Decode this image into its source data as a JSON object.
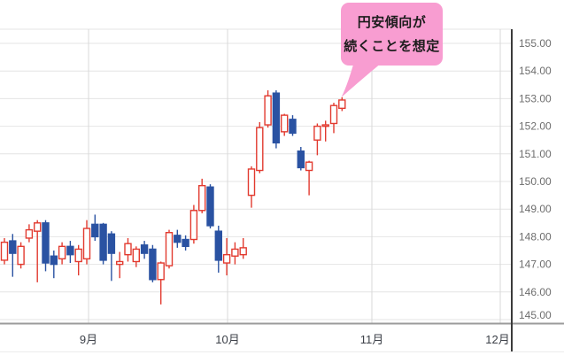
{
  "annotation": {
    "line1": "円安傾向が",
    "line2": "続くことを想定",
    "bg_color": "#f89dd1",
    "text_color": "#1c1c1c"
  },
  "chart_data": {
    "type": "candlestick",
    "title": "",
    "xlabel": "",
    "ylabel": "",
    "grid": true,
    "legend": "none",
    "ylim": [
      145.0,
      155.5
    ],
    "y_ticks": [
      "155.00",
      "154.00",
      "153.00",
      "152.00",
      "151.00",
      "150.00",
      "149.00",
      "148.00",
      "147.00",
      "146.00",
      "145.00"
    ],
    "x_ticks": [
      "9月",
      "10月",
      "11月",
      "12月"
    ],
    "up_color": "#e23a2f",
    "down_color": "#2a52a2",
    "grid_color": "#e4e4e4",
    "vgrid_color": "#d9d9d9",
    "axis_color": "#9b9b9b",
    "right_axis_color": "#3b3b3b",
    "candles_ohlc": [
      [
        147.15,
        147.95,
        147.0,
        147.8
      ],
      [
        147.85,
        148.1,
        146.55,
        147.4
      ],
      [
        147.0,
        147.8,
        146.85,
        147.65
      ],
      [
        147.95,
        148.45,
        147.8,
        148.25
      ],
      [
        148.2,
        148.6,
        146.35,
        148.5
      ],
      [
        148.5,
        148.6,
        146.75,
        147.05
      ],
      [
        147.3,
        147.5,
        146.5,
        147.0
      ],
      [
        147.2,
        147.8,
        147.0,
        147.65
      ],
      [
        147.65,
        147.85,
        147.05,
        147.35
      ],
      [
        147.1,
        147.7,
        146.6,
        147.55
      ],
      [
        147.2,
        148.6,
        147.0,
        148.3
      ],
      [
        148.45,
        148.8,
        147.85,
        148.0
      ],
      [
        148.45,
        148.5,
        147.0,
        147.15
      ],
      [
        148.1,
        148.2,
        146.4,
        147.4
      ],
      [
        147.0,
        147.45,
        146.5,
        147.1
      ],
      [
        147.35,
        147.95,
        147.1,
        147.75
      ],
      [
        147.1,
        147.65,
        146.9,
        147.55
      ],
      [
        147.7,
        147.85,
        147.2,
        147.4
      ],
      [
        147.55,
        147.7,
        146.35,
        146.45
      ],
      [
        146.45,
        147.1,
        145.55,
        147.05
      ],
      [
        146.95,
        148.25,
        146.85,
        148.15
      ],
      [
        148.05,
        148.25,
        147.6,
        147.8
      ],
      [
        147.9,
        148.05,
        147.5,
        147.65
      ],
      [
        147.9,
        149.15,
        147.75,
        148.95
      ],
      [
        148.95,
        150.1,
        148.85,
        149.85
      ],
      [
        149.8,
        149.9,
        148.3,
        148.4
      ],
      [
        148.2,
        148.4,
        146.7,
        147.15
      ],
      [
        147.05,
        147.95,
        146.6,
        147.35
      ],
      [
        147.3,
        147.8,
        147.0,
        147.55
      ],
      [
        147.35,
        147.95,
        147.2,
        147.6
      ],
      [
        149.5,
        150.55,
        149.05,
        150.45
      ],
      [
        150.4,
        152.15,
        150.3,
        151.95
      ],
      [
        152.05,
        153.3,
        151.95,
        153.1
      ],
      [
        153.2,
        153.3,
        151.2,
        151.4
      ],
      [
        151.8,
        152.45,
        151.65,
        152.4
      ],
      [
        152.25,
        152.4,
        151.65,
        151.75
      ],
      [
        151.1,
        151.25,
        150.4,
        150.5
      ],
      [
        150.4,
        150.75,
        149.5,
        150.7
      ],
      [
        151.5,
        152.1,
        150.95,
        152.0
      ],
      [
        152.0,
        152.2,
        151.45,
        152.05
      ],
      [
        152.1,
        152.85,
        151.75,
        152.75
      ],
      [
        152.65,
        153.05,
        152.55,
        152.95
      ]
    ]
  }
}
